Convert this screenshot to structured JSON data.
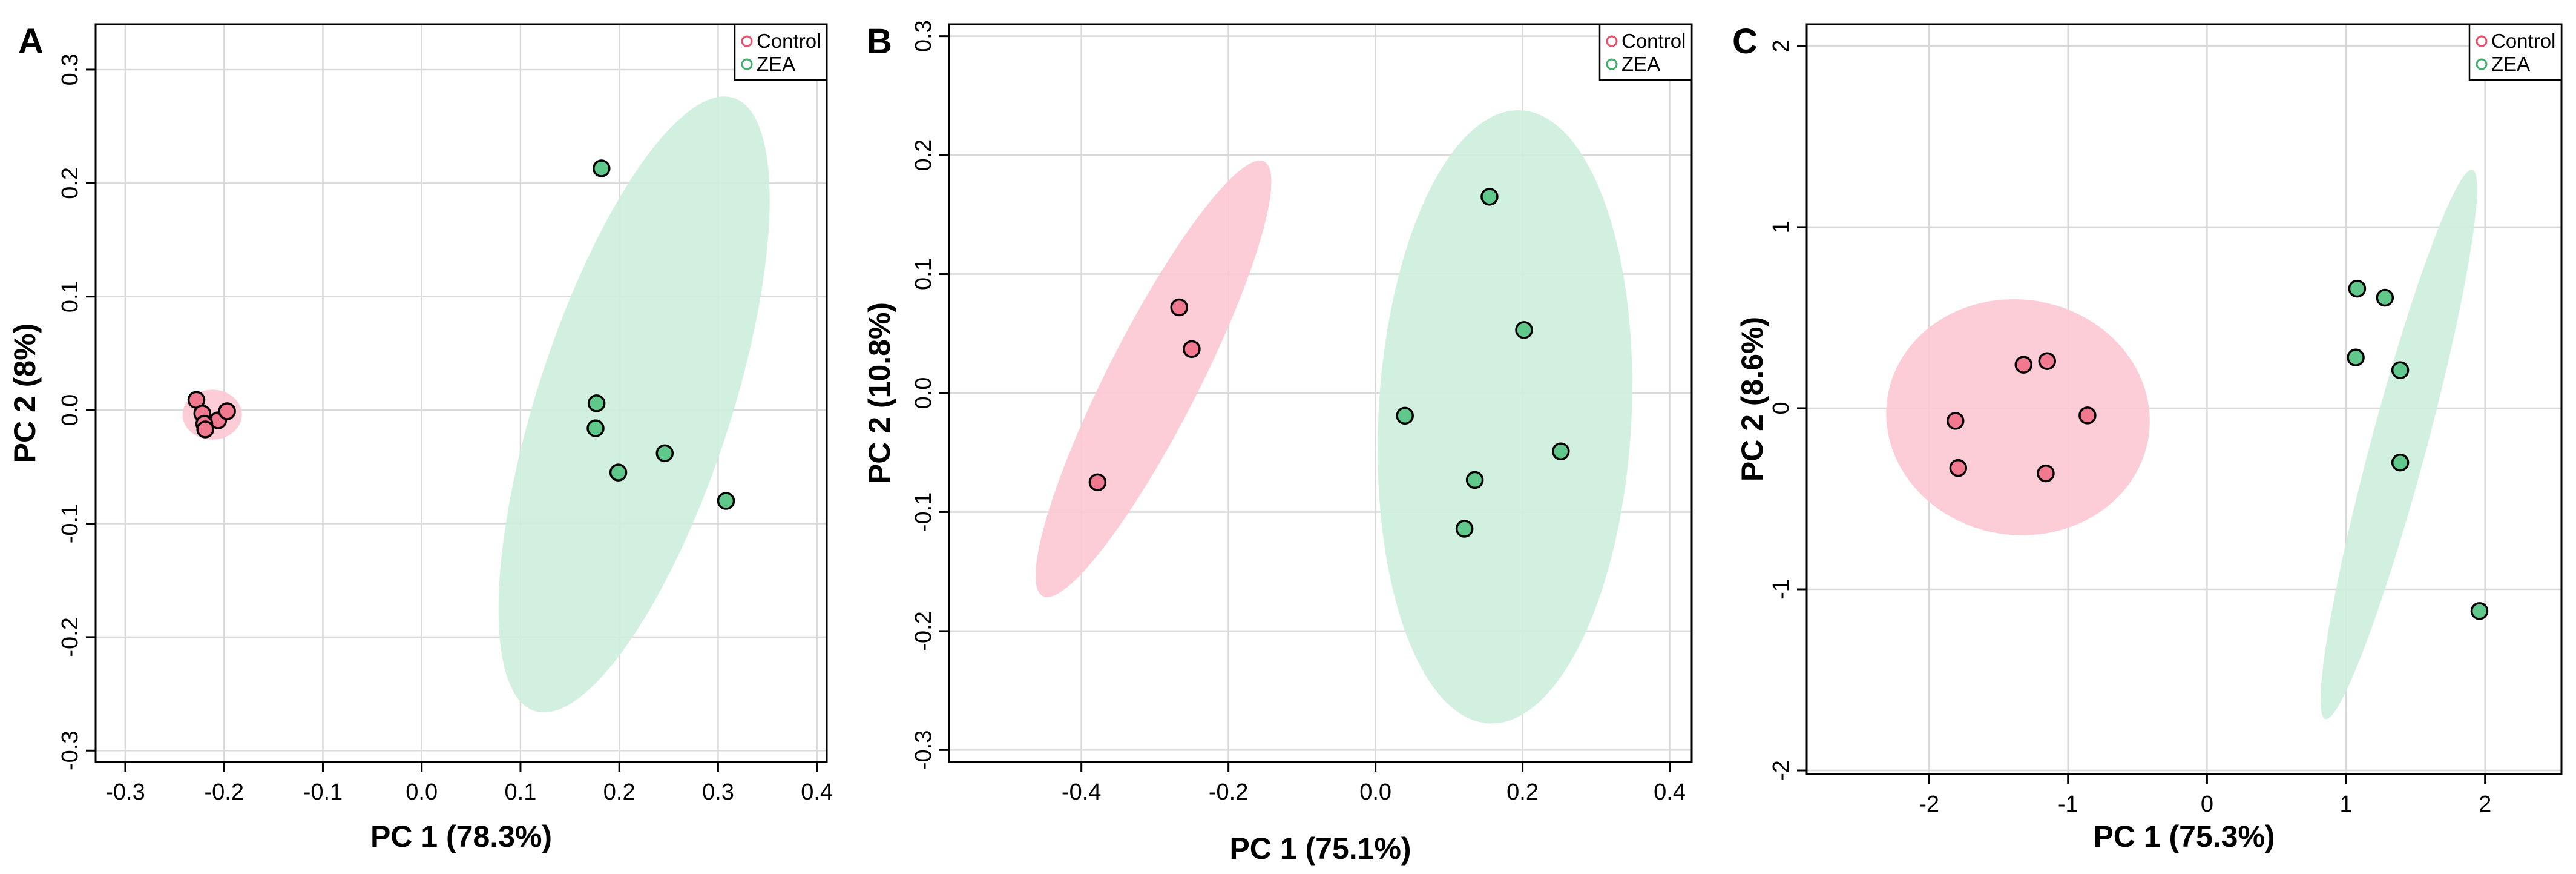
{
  "figure": {
    "colors": {
      "control_fill": "#f0788f",
      "control_ellipse": "#fcc8d3",
      "zea_fill": "#5fc88a",
      "zea_ellipse": "#cdeedb",
      "legend_control": "#e8506a",
      "legend_zea": "#3fae6a"
    }
  },
  "chart_data": [
    {
      "panel_label": "A",
      "type": "scatter",
      "title": "",
      "xlabel": "PC 1 (78.3%)",
      "ylabel": "PC 2 (8%)",
      "xlim": [
        -0.33,
        0.41
      ],
      "ylim": [
        -0.31,
        0.34
      ],
      "x_ticks": [
        -0.3,
        -0.2,
        -0.1,
        0.0,
        0.1,
        0.2,
        0.3,
        0.4
      ],
      "x_tick_labels": [
        "-0.3",
        "-0.2",
        "-0.1",
        "0.0",
        "0.1",
        "0.2",
        "0.3",
        "0.4"
      ],
      "y_ticks": [
        -0.3,
        -0.2,
        -0.1,
        0.0,
        0.1,
        0.2,
        0.3
      ],
      "y_tick_labels": [
        "-0.3",
        "-0.2",
        "-0.1",
        "0.0",
        "0.1",
        "0.2",
        "0.3"
      ],
      "legend": [
        "Control",
        "ZEA"
      ],
      "legend_position": "top-right",
      "grid": true,
      "series": [
        {
          "name": "Control",
          "points": [
            [
              -0.228,
              0.009
            ],
            [
              -0.222,
              -0.003
            ],
            [
              -0.206,
              -0.009
            ],
            [
              -0.197,
              -0.001
            ],
            [
              -0.22,
              -0.012
            ],
            [
              -0.219,
              -0.017
            ]
          ],
          "ellipse": {
            "cx": -0.212,
            "cy": -0.004,
            "rx": 0.03,
            "ry": 0.022,
            "angle": 0
          }
        },
        {
          "name": "ZEA",
          "points": [
            [
              0.182,
              0.213
            ],
            [
              0.177,
              0.006
            ],
            [
              0.176,
              -0.016
            ],
            [
              0.199,
              -0.055
            ],
            [
              0.246,
              -0.038
            ],
            [
              0.308,
              -0.08
            ]
          ],
          "ellipse": {
            "cx": 0.215,
            "cy": 0.005,
            "rx": 0.098,
            "ry": 0.284,
            "angle": 18
          }
        }
      ]
    },
    {
      "panel_label": "B",
      "type": "scatter",
      "title": "",
      "xlabel": "PC 1 (75.1%)",
      "ylabel": "PC 2 (10.8%)",
      "xlim": [
        -0.58,
        0.43
      ],
      "ylim": [
        -0.31,
        0.31
      ],
      "x_ticks": [
        -0.4,
        -0.2,
        0.0,
        0.2,
        0.4
      ],
      "x_tick_labels": [
        "-0.4",
        "-0.2",
        "0.0",
        "0.2",
        "0.4"
      ],
      "y_ticks": [
        -0.3,
        -0.2,
        -0.1,
        0.0,
        0.1,
        0.2,
        0.3
      ],
      "y_tick_labels": [
        "-0.3",
        "-0.2",
        "-0.1",
        "0.0",
        "0.1",
        "0.2",
        "0.3"
      ],
      "legend": [
        "Control",
        "ZEA"
      ],
      "legend_position": "top-right",
      "grid": true,
      "series": [
        {
          "name": "Control",
          "points": [
            [
              -0.267,
              0.072
            ],
            [
              -0.25,
              0.037
            ],
            [
              -0.378,
              -0.075
            ]
          ],
          "ellipse": {
            "cx": -0.302,
            "cy": 0.012,
            "rx": 0.062,
            "ry": 0.205,
            "angle": 27
          }
        },
        {
          "name": "ZEA",
          "points": [
            [
              0.155,
              0.165
            ],
            [
              0.202,
              0.053
            ],
            [
              0.04,
              -0.019
            ],
            [
              0.252,
              -0.049
            ],
            [
              0.135,
              -0.073
            ],
            [
              0.121,
              -0.114
            ]
          ],
          "ellipse": {
            "cx": 0.176,
            "cy": -0.02,
            "rx": 0.172,
            "ry": 0.258,
            "angle": 3
          }
        }
      ]
    },
    {
      "panel_label": "C",
      "type": "scatter",
      "title": "",
      "xlabel": "PC 1 (75.3%)",
      "ylabel": "PC 2 (8.6%)",
      "xlim": [
        -2.88,
        2.55
      ],
      "ylim": [
        -2.02,
        2.12
      ],
      "x_ticks": [
        -2,
        -1,
        0,
        1,
        2
      ],
      "x_tick_labels": [
        "-2",
        "-1",
        "0",
        "1",
        "2"
      ],
      "y_ticks": [
        -2,
        -1,
        0,
        1,
        2
      ],
      "y_tick_labels": [
        "-2",
        "-1",
        "0",
        "1",
        "2"
      ],
      "legend": [
        "Control",
        "ZEA"
      ],
      "legend_position": "top-right",
      "grid": true,
      "series": [
        {
          "name": "Control",
          "points": [
            [
              -1.81,
              -0.07
            ],
            [
              -1.79,
              -0.33
            ],
            [
              -1.32,
              0.24
            ],
            [
              -1.15,
              0.26
            ],
            [
              -1.16,
              -0.36
            ],
            [
              -0.86,
              -0.04
            ]
          ],
          "ellipse": {
            "cx": -1.36,
            "cy": -0.05,
            "rx": 0.95,
            "ry": 0.65,
            "angle": 8
          }
        },
        {
          "name": "ZEA",
          "points": [
            [
              1.08,
              0.66
            ],
            [
              1.28,
              0.61
            ],
            [
              1.07,
              0.28
            ],
            [
              1.39,
              0.21
            ],
            [
              1.39,
              -0.3
            ],
            [
              1.96,
              -1.12
            ]
          ],
          "ellipse": {
            "cx": 1.38,
            "cy": -0.2,
            "rx": 0.2,
            "ry": 1.57,
            "angle": 15
          }
        }
      ]
    }
  ]
}
